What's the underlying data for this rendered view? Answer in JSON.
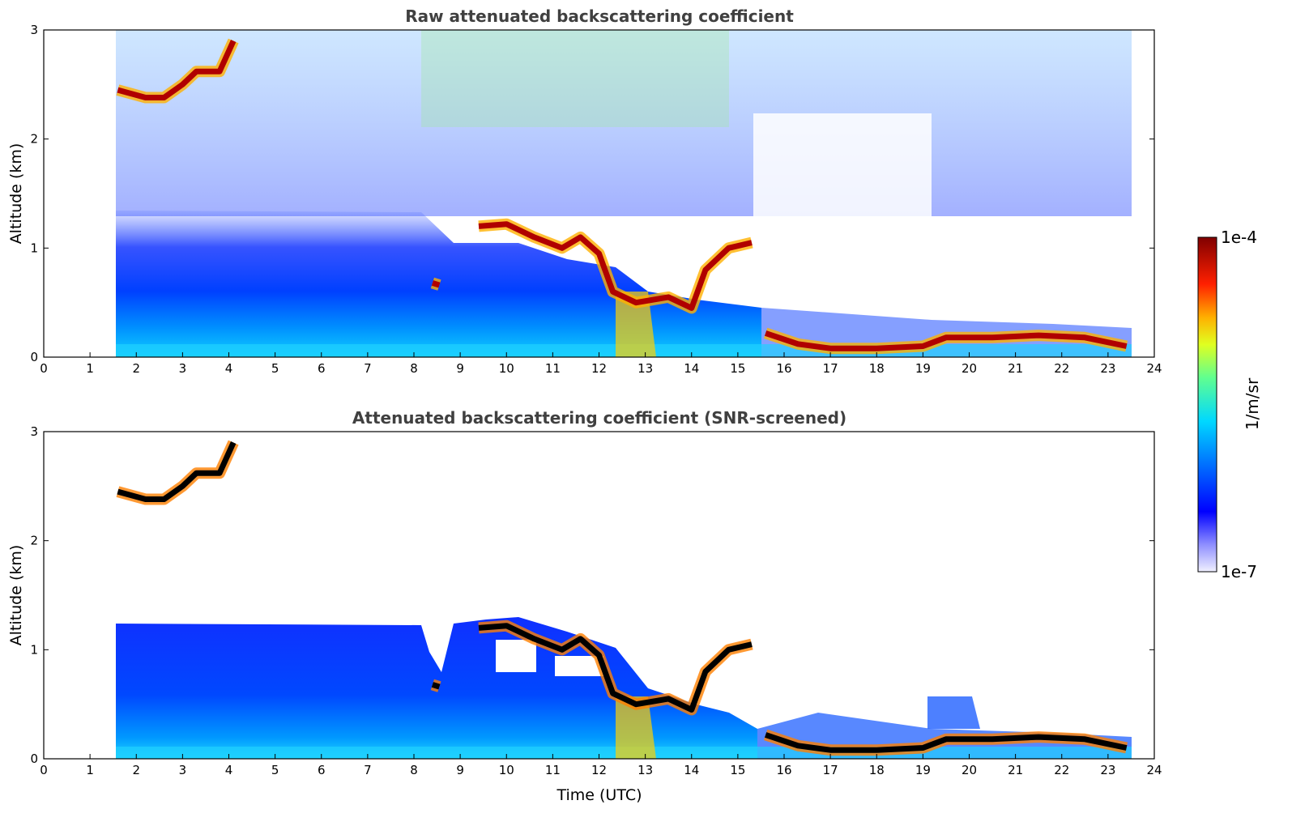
{
  "chart_data": [
    {
      "type": "heatmap",
      "title": "Raw attenuated backscattering coefficient",
      "xlabel": "",
      "ylabel": "Altitude (km)",
      "xlim": [
        0,
        24
      ],
      "ylim": [
        0,
        3
      ],
      "xticks": [
        "0",
        "1",
        "2",
        "3",
        "4",
        "5",
        "6",
        "7",
        "8",
        "9",
        "10",
        "11",
        "12",
        "13",
        "14",
        "15",
        "16",
        "17",
        "18",
        "19",
        "20",
        "21",
        "22",
        "23",
        "24"
      ],
      "yticks": [
        "0",
        "1",
        "2",
        "3"
      ],
      "data_start_hour": 1.55,
      "data_end_hour": 23.5,
      "cloud_layer_km": [
        {
          "t": 1.6,
          "h": 2.45
        },
        {
          "t": 2.2,
          "h": 2.38
        },
        {
          "t": 2.6,
          "h": 2.38
        },
        {
          "t": 3.0,
          "h": 2.5
        },
        {
          "t": 3.3,
          "h": 2.62
        },
        {
          "t": 3.8,
          "h": 2.62
        },
        {
          "t": 4.1,
          "h": 2.9
        },
        {
          "t": 8.4,
          "h": 0.68
        },
        {
          "t": 9.4,
          "h": 1.2
        },
        {
          "t": 10.0,
          "h": 1.22
        },
        {
          "t": 10.6,
          "h": 1.1
        },
        {
          "t": 11.2,
          "h": 1.0
        },
        {
          "t": 11.6,
          "h": 1.1
        },
        {
          "t": 12.0,
          "h": 0.95
        },
        {
          "t": 12.3,
          "h": 0.6
        },
        {
          "t": 12.8,
          "h": 0.5
        },
        {
          "t": 13.5,
          "h": 0.55
        },
        {
          "t": 14.0,
          "h": 0.45
        },
        {
          "t": 14.3,
          "h": 0.8
        },
        {
          "t": 14.8,
          "h": 1.0
        },
        {
          "t": 15.3,
          "h": 1.05
        },
        {
          "t": 15.6,
          "h": 0.22
        },
        {
          "t": 16.3,
          "h": 0.12
        },
        {
          "t": 17.0,
          "h": 0.08
        },
        {
          "t": 18.0,
          "h": 0.08
        },
        {
          "t": 19.0,
          "h": 0.1
        },
        {
          "t": 19.5,
          "h": 0.18
        },
        {
          "t": 20.5,
          "h": 0.18
        },
        {
          "t": 21.5,
          "h": 0.2
        },
        {
          "t": 22.5,
          "h": 0.18
        },
        {
          "t": 23.4,
          "h": 0.1
        }
      ]
    },
    {
      "type": "heatmap",
      "title": "Attenuated backscattering coefficient (SNR-screened)",
      "xlabel": "Time (UTC)",
      "ylabel": "Altitude (km)",
      "xlim": [
        0,
        24
      ],
      "ylim": [
        0,
        3
      ],
      "xticks": [
        "0",
        "1",
        "2",
        "3",
        "4",
        "5",
        "6",
        "7",
        "8",
        "9",
        "10",
        "11",
        "12",
        "13",
        "14",
        "15",
        "16",
        "17",
        "18",
        "19",
        "20",
        "21",
        "22",
        "23",
        "24"
      ],
      "yticks": [
        "0",
        "1",
        "2",
        "3"
      ],
      "data_start_hour": 1.55,
      "data_end_hour": 23.5,
      "boundary_layer_top_km": 1.2
    }
  ],
  "colorbar": {
    "label": "1/m/sr",
    "max_label": "1e-4",
    "min_label": "1e-7",
    "colors": [
      "#ffffff",
      "#0000ff",
      "#0080ff",
      "#00e0ff",
      "#80ff80",
      "#ffff00",
      "#ff8000",
      "#ff0000",
      "#800000"
    ]
  }
}
